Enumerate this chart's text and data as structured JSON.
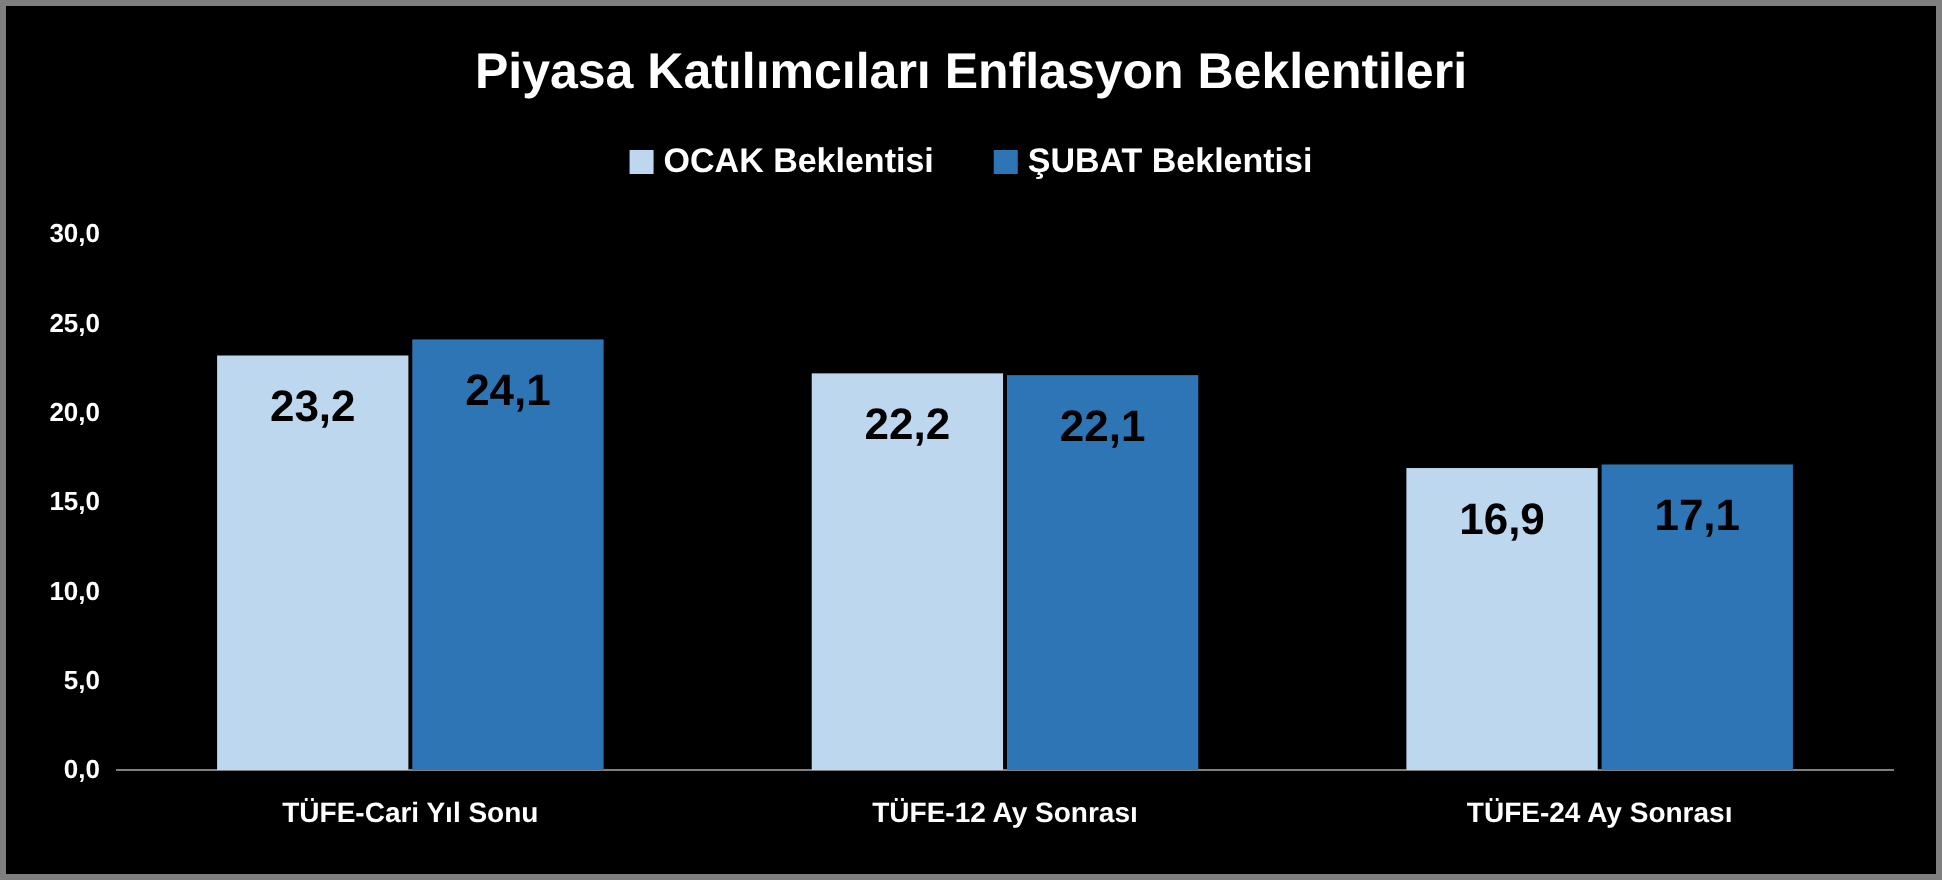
{
  "chart_data": {
    "type": "bar",
    "title": "Piyasa Katılımcıları Enflasyon Beklentileri",
    "categories": [
      "TÜFE-Cari Yıl Sonu",
      "TÜFE-12 Ay Sonrası",
      "TÜFE-24 Ay Sonrası"
    ],
    "series": [
      {
        "name": "OCAK Beklentisi",
        "color": "#bdd7ee",
        "values": [
          23.2,
          22.2,
          16.9
        ],
        "value_labels": [
          "23,2",
          "22,2",
          "16,9"
        ]
      },
      {
        "name": "ŞUBAT Beklentisi",
        "color": "#2e75b6",
        "values": [
          24.1,
          22.1,
          17.1
        ],
        "value_labels": [
          "24,1",
          "22,1",
          "17,1"
        ]
      }
    ],
    "ylim": [
      0,
      30
    ],
    "yticks": [
      {
        "value": 0,
        "label": "0,0"
      },
      {
        "value": 5,
        "label": "5,0"
      },
      {
        "value": 10,
        "label": "10,0"
      },
      {
        "value": 15,
        "label": "15,0"
      },
      {
        "value": 20,
        "label": "20,0"
      },
      {
        "value": 25,
        "label": "25,0"
      },
      {
        "value": 30,
        "label": "30,0"
      }
    ],
    "legend": "top"
  }
}
